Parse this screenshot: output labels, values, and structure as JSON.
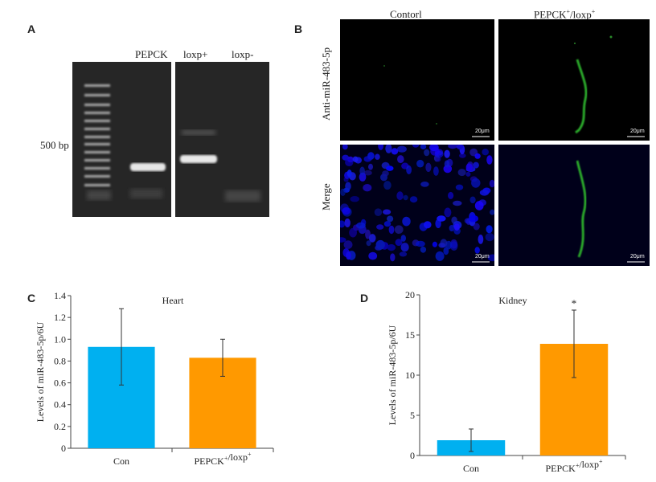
{
  "panels": {
    "A": {
      "letter": "A",
      "lanes": [
        "PEPCK",
        "loxp+",
        "loxp-"
      ],
      "marker_label": "500 bp"
    },
    "B": {
      "letter": "B",
      "columns": [
        "Contorl",
        "PEPCK+/loxp+"
      ],
      "rows": [
        "Anti-miR-483-5p",
        "Merge"
      ],
      "scale_label": "20μm"
    },
    "C": {
      "letter": "C"
    },
    "D": {
      "letter": "D"
    }
  },
  "chart_data": [
    {
      "type": "bar",
      "title": "Heart",
      "ylabel": "Levels of miR-483-5p/6U",
      "xlabel": "",
      "categories": [
        "Con",
        "PEPCK+/loxp+"
      ],
      "values": [
        0.93,
        0.83
      ],
      "errors": [
        0.35,
        0.17
      ],
      "colors": [
        "#00b0f0",
        "#ff9900"
      ],
      "ylim": [
        0,
        1.4
      ],
      "yticks": [
        0,
        0.2,
        0.4,
        0.6,
        0.8,
        1.0,
        1.2,
        1.4
      ],
      "ytick_labels": [
        "0",
        "0.2",
        "0.4",
        "0.6",
        "0.8",
        "1.0",
        "1.2",
        "1.4"
      ],
      "significance": [
        "",
        ""
      ]
    },
    {
      "type": "bar",
      "title": "Kidney",
      "ylabel": "Levels of miR-483-5p/6U",
      "xlabel": "",
      "categories": [
        "Con",
        "PEPCK+/loxp+"
      ],
      "values": [
        1.9,
        13.9
      ],
      "errors": [
        1.4,
        4.2
      ],
      "colors": [
        "#00b0f0",
        "#ff9900"
      ],
      "ylim": [
        0,
        20
      ],
      "yticks": [
        0,
        5,
        10,
        15,
        20
      ],
      "ytick_labels": [
        "0",
        "5",
        "10",
        "15",
        "20"
      ],
      "significance": [
        "",
        "*"
      ]
    }
  ]
}
